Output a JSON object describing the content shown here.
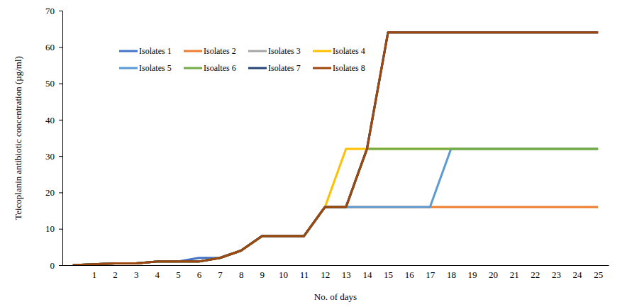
{
  "chart_data": {
    "type": "line",
    "x_label": "No. of days",
    "y_label": "Teicoplanin antibiotic concentration (µg/ml)",
    "categories": [
      null,
      1,
      2,
      3,
      4,
      5,
      6,
      7,
      8,
      9,
      10,
      11,
      12,
      13,
      14,
      15,
      16,
      17,
      18,
      19,
      20,
      21,
      22,
      23,
      24,
      25
    ],
    "ylim": [
      0,
      70
    ],
    "yticks": [
      0,
      10,
      20,
      30,
      40,
      50,
      60,
      70
    ],
    "grid": false,
    "legend": "top-left",
    "series": [
      {
        "name": "Isolates 1",
        "color": "#4472c4",
        "values": [
          0,
          0.25,
          0.5,
          0.5,
          1,
          1,
          2,
          2,
          4,
          8,
          8,
          8,
          16,
          16,
          32,
          64,
          64,
          64,
          64,
          64,
          64,
          64,
          64,
          64,
          64,
          64
        ]
      },
      {
        "name": "Isolates 2",
        "color": "#ed7d31",
        "values": [
          0,
          0.25,
          0.5,
          0.5,
          1,
          1,
          1,
          2,
          4,
          8,
          8,
          8,
          16,
          16,
          16,
          16,
          16,
          16,
          16,
          16,
          16,
          16,
          16,
          16,
          16,
          16
        ]
      },
      {
        "name": "Isolates 3",
        "color": "#a5a5a5",
        "values": [
          0,
          0.25,
          0.5,
          0.5,
          1,
          1,
          1,
          2,
          4,
          8,
          8,
          8,
          16,
          16,
          32,
          64,
          64,
          64,
          64,
          64,
          64,
          64,
          64,
          64,
          64,
          64
        ]
      },
      {
        "name": "Isolates 4",
        "color": "#ffc000",
        "values": [
          0,
          0.25,
          0.5,
          0.5,
          1,
          1,
          1,
          2,
          4,
          8,
          8,
          8,
          16,
          32,
          32,
          32,
          32,
          32,
          32,
          32,
          32,
          32,
          32,
          32,
          32,
          32
        ]
      },
      {
        "name": "Isolates 5",
        "color": "#5b9bd5",
        "values": [
          0,
          0.25,
          0.5,
          0.5,
          1,
          1,
          1,
          2,
          4,
          8,
          8,
          8,
          16,
          16,
          16,
          16,
          16,
          16,
          32,
          32,
          32,
          32,
          32,
          32,
          32,
          32
        ]
      },
      {
        "name": "Isoaltes 6",
        "color": "#70ad47",
        "values": [
          0,
          0.25,
          0.5,
          0.5,
          1,
          1,
          1,
          2,
          4,
          8,
          8,
          8,
          16,
          16,
          32,
          32,
          32,
          32,
          32,
          32,
          32,
          32,
          32,
          32,
          32,
          32
        ]
      },
      {
        "name": "Isolates 7",
        "color": "#264478",
        "values": [
          0,
          0.25,
          0.5,
          0.5,
          1,
          1,
          1,
          2,
          4,
          8,
          8,
          8,
          16,
          16,
          32,
          64,
          64,
          64,
          64,
          64,
          64,
          64,
          64,
          64,
          64,
          64
        ]
      },
      {
        "name": "Isolates 8",
        "color": "#9e480e",
        "values": [
          0,
          0.25,
          0.5,
          0.5,
          1,
          1,
          1,
          2,
          4,
          8,
          8,
          8,
          16,
          16,
          32,
          64,
          64,
          64,
          64,
          64,
          64,
          64,
          64,
          64,
          64,
          64
        ]
      }
    ]
  }
}
